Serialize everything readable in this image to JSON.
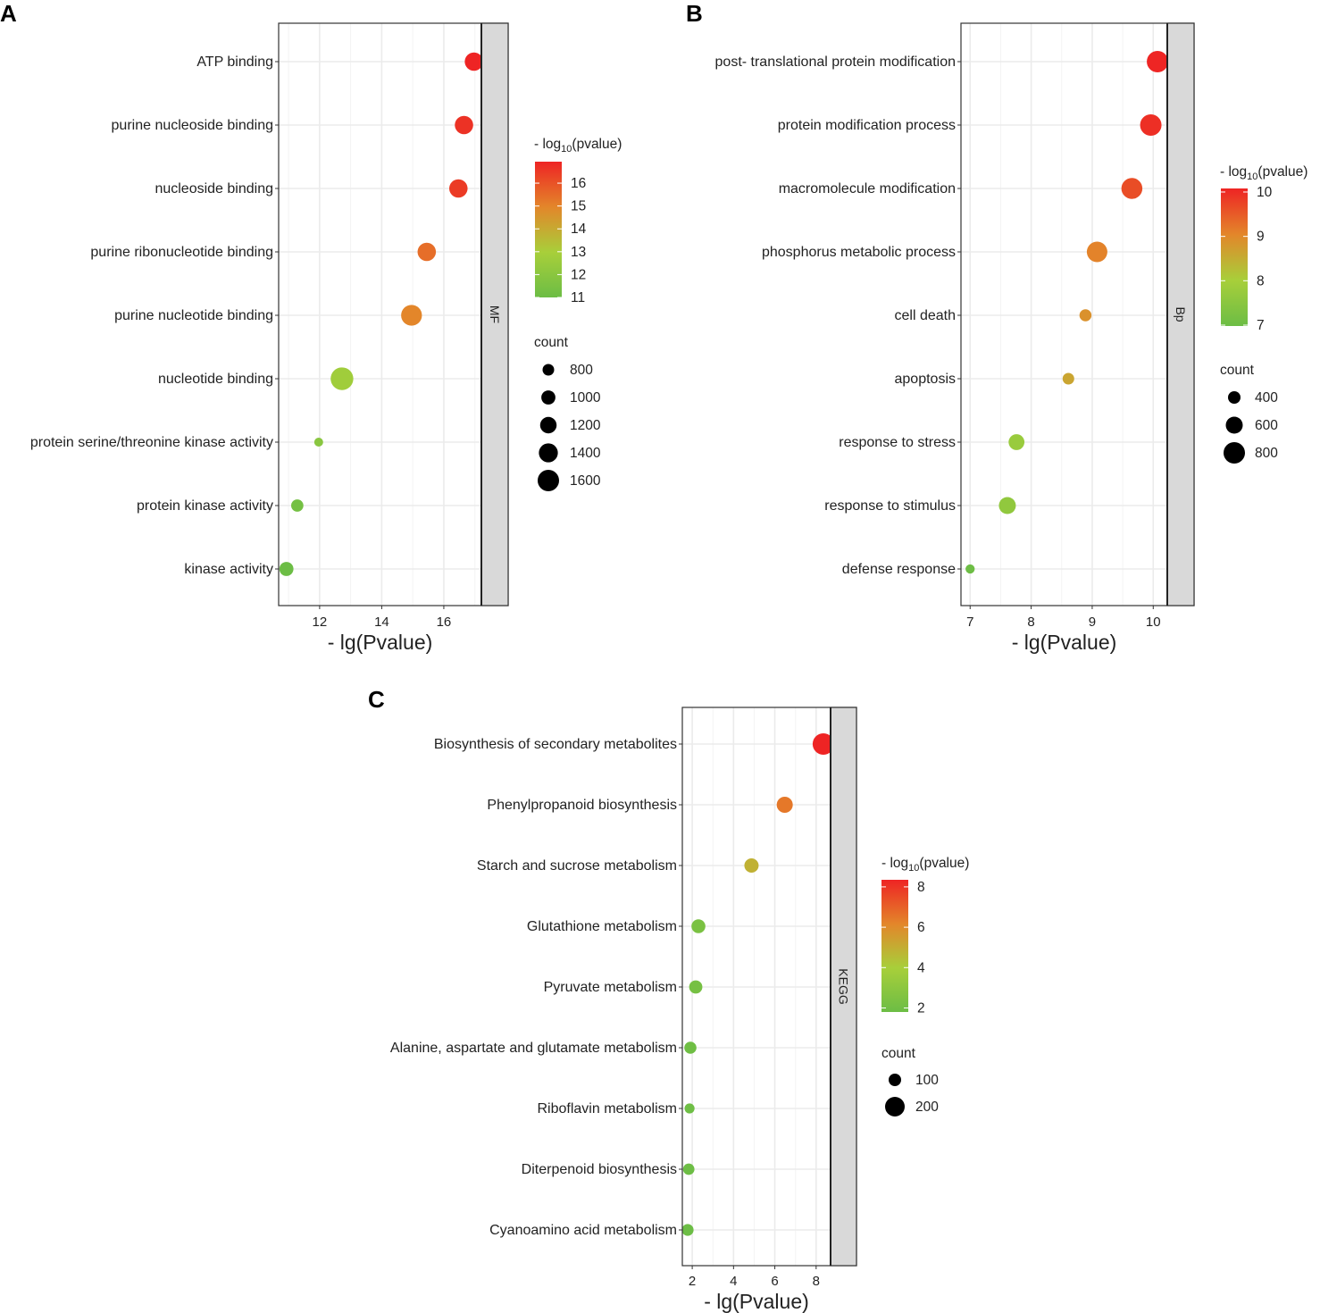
{
  "chart_data": [
    {
      "type": "scatter",
      "panel_label": "A",
      "facet": "MF",
      "xlabel": "- lg(Pvalue)",
      "ylabel": "",
      "xlim": [
        10.68,
        17.21
      ],
      "xticks": [
        12,
        14,
        16
      ],
      "grid": true,
      "categories": [
        "ATP binding",
        "purine nucleoside binding",
        "nucleoside binding",
        "purine ribonucleotide binding",
        "purine nucleotide binding",
        "nucleotide binding",
        "protein serine/threonine kinase activity",
        "protein kinase activity",
        "kinase activity"
      ],
      "x": [
        16.97,
        16.65,
        16.47,
        15.45,
        14.96,
        12.72,
        11.97,
        11.28,
        10.93
      ],
      "count": [
        1350,
        1350,
        1350,
        1350,
        1550,
        1700,
        580,
        850,
        1000
      ],
      "color_legend": {
        "title": "- log10(pvalue)",
        "range": [
          11,
          16.94
        ],
        "ticks": [
          16,
          15,
          14,
          13,
          12,
          11
        ]
      },
      "size_legend": {
        "title": "count",
        "values": [
          800,
          1000,
          1200,
          1400,
          1600
        ]
      },
      "legend_position": "right"
    },
    {
      "type": "scatter",
      "panel_label": "B",
      "facet": "Bp",
      "xlabel": "- lg(Pvalue)",
      "ylabel": "",
      "xlim": [
        6.85,
        10.23
      ],
      "xticks": [
        7,
        8,
        9,
        10
      ],
      "grid": true,
      "categories": [
        "post- translational protein modification",
        "protein modification process",
        "macromolecule modification",
        "phosphorus metabolic process",
        "cell death",
        "apoptosis",
        "response to stress",
        "response to stimulus",
        "defense response"
      ],
      "x": [
        10.07,
        9.96,
        9.65,
        9.08,
        8.89,
        8.61,
        7.76,
        7.61,
        7.0
      ],
      "count": [
        800,
        800,
        780,
        760,
        380,
        360,
        550,
        600,
        250
      ],
      "color_legend": {
        "title": "- log10(pvalue)",
        "range": [
          6.98,
          10.08
        ],
        "ticks": [
          10,
          9,
          8,
          7
        ]
      },
      "size_legend": {
        "title": "count",
        "values": [
          400,
          600,
          800
        ]
      },
      "legend_position": "right"
    },
    {
      "type": "scatter",
      "panel_label": "C",
      "facet": "KEGG",
      "xlabel": "- lg(Pvalue)",
      "ylabel": "",
      "xlim": [
        1.52,
        8.7
      ],
      "xticks": [
        2,
        4,
        6,
        8
      ],
      "grid": true,
      "categories": [
        "Biosynthesis of secondary metabolites",
        "Phenylpropanoid biosynthesis",
        "Starch and sucrose metabolism",
        "Glutathione metabolism",
        "Pyruvate metabolism",
        "Alanine, aspartate and glutamate metabolism",
        "Riboflavin metabolism",
        "Diterpenoid biosynthesis",
        "Cyanoamino acid metabolism"
      ],
      "x": [
        8.35,
        6.48,
        4.87,
        2.3,
        2.17,
        1.91,
        1.87,
        1.83,
        1.78
      ],
      "count": [
        225,
        150,
        125,
        120,
        110,
        95,
        65,
        85,
        90
      ],
      "color_legend": {
        "title": "- log10(pvalue)",
        "range": [
          1.8,
          8.35
        ],
        "ticks": [
          8,
          6,
          4,
          2
        ]
      },
      "size_legend": {
        "title": "count",
        "values": [
          100,
          200
        ]
      },
      "legend_position": "right"
    }
  ],
  "colors": {
    "low": "#6cbd45",
    "mid_low": "#a8cf3a",
    "mid_high": "#e3862a",
    "high": "#ee2424",
    "strip": "#d9d9d9",
    "grid": "#ebebeb"
  }
}
